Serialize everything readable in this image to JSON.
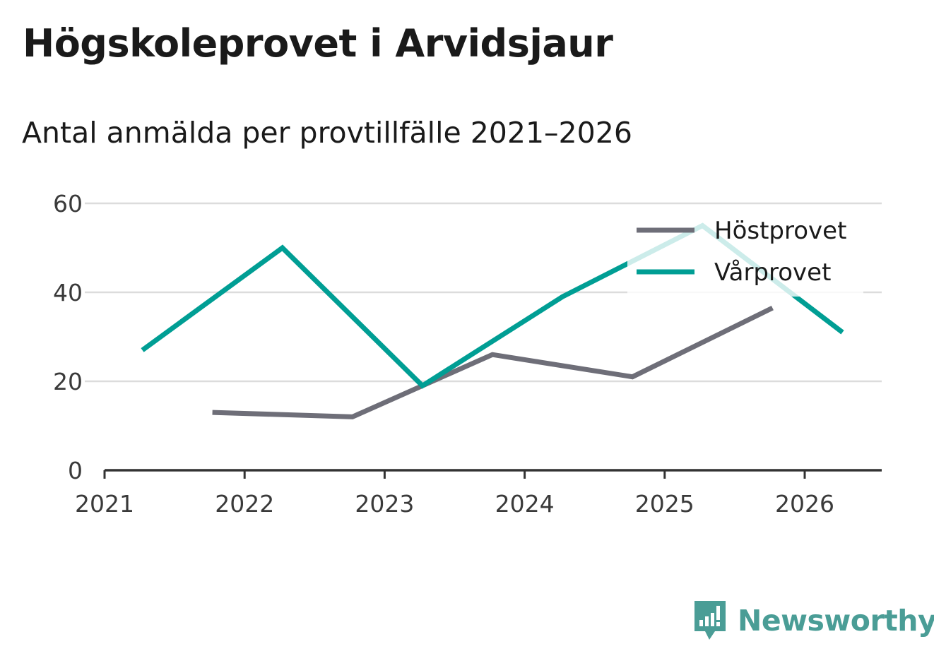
{
  "header": {
    "title": "Högskoleprovet i Arvidsjaur",
    "subtitle": "Antal anmälda per provtillfälle 2021–2026"
  },
  "brand": {
    "name": "Newsworthy",
    "color": "#4a9d96"
  },
  "chart_data": {
    "type": "line",
    "title": "Högskoleprovet i Arvidsjaur",
    "subtitle": "Antal anmälda per provtillfälle 2021–2026",
    "xlabel": "",
    "ylabel": "",
    "xlim": [
      2021,
      2026.55
    ],
    "ylim": [
      0,
      60
    ],
    "yticks": [
      0,
      20,
      40,
      60
    ],
    "xticks": [
      2021,
      2022,
      2023,
      2024,
      2025,
      2026
    ],
    "xtick_labels": [
      "2021",
      "2022",
      "2023",
      "2024",
      "2025",
      "2026"
    ],
    "ytick_labels": [
      "0",
      "20",
      "40",
      "60"
    ],
    "grid": true,
    "legend_position": "top-right",
    "series": [
      {
        "name": "Höstprovet",
        "color": "#6e6e78",
        "x": [
          2021.77,
          2022.77,
          2023.27,
          2023.77,
          2024.77,
          2025.77
        ],
        "values": [
          13,
          12,
          19,
          26,
          21,
          36.5
        ]
      },
      {
        "name": "Vårprovet",
        "color": "#009e94",
        "x": [
          2021.27,
          2022.27,
          2023.27,
          2024.27,
          2025.27,
          2026.27
        ],
        "values": [
          27,
          50,
          19,
          39,
          55,
          31
        ]
      }
    ]
  }
}
